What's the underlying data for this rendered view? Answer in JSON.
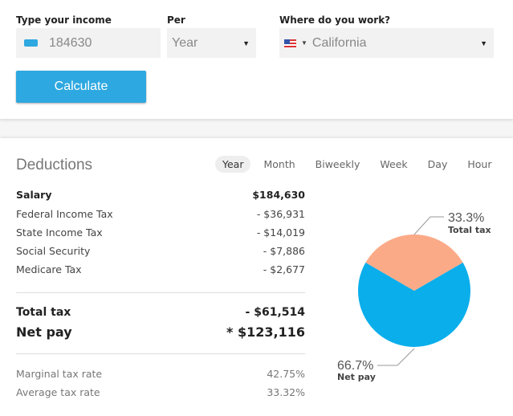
{
  "form": {
    "income_label": "Type your income",
    "income_value": "184630",
    "per_label": "Per",
    "per_value": "Year",
    "where_label": "Where do you work?",
    "where_value": "California",
    "calculate": "Calculate"
  },
  "deductions": {
    "title": "Deductions",
    "tabs": [
      "Year",
      "Month",
      "Biweekly",
      "Week",
      "Day",
      "Hour"
    ],
    "active_tab": "Year",
    "rows": [
      {
        "label": "Salary",
        "value": "$184,630"
      },
      {
        "label": "Federal Income Tax",
        "value": "- $36,931"
      },
      {
        "label": "State Income Tax",
        "value": "- $14,019"
      },
      {
        "label": "Social Security",
        "value": "- $7,886"
      },
      {
        "label": "Medicare Tax",
        "value": "- $2,677"
      }
    ],
    "total_tax": {
      "label": "Total tax",
      "value": "- $61,514"
    },
    "net_pay": {
      "label": "Net pay",
      "value": "* $123,116"
    },
    "marginal": {
      "label": "Marginal tax rate",
      "value": "42.75%"
    },
    "average": {
      "label": "Average tax rate",
      "value": "33.32%"
    }
  },
  "chart_data": {
    "type": "pie",
    "slices": [
      {
        "label": "Total tax",
        "value": 33.3,
        "pct": "33.3%",
        "color": "#fbaa88"
      },
      {
        "label": "Net pay",
        "value": 66.7,
        "pct": "66.7%",
        "color": "#0aaeeb"
      }
    ]
  }
}
